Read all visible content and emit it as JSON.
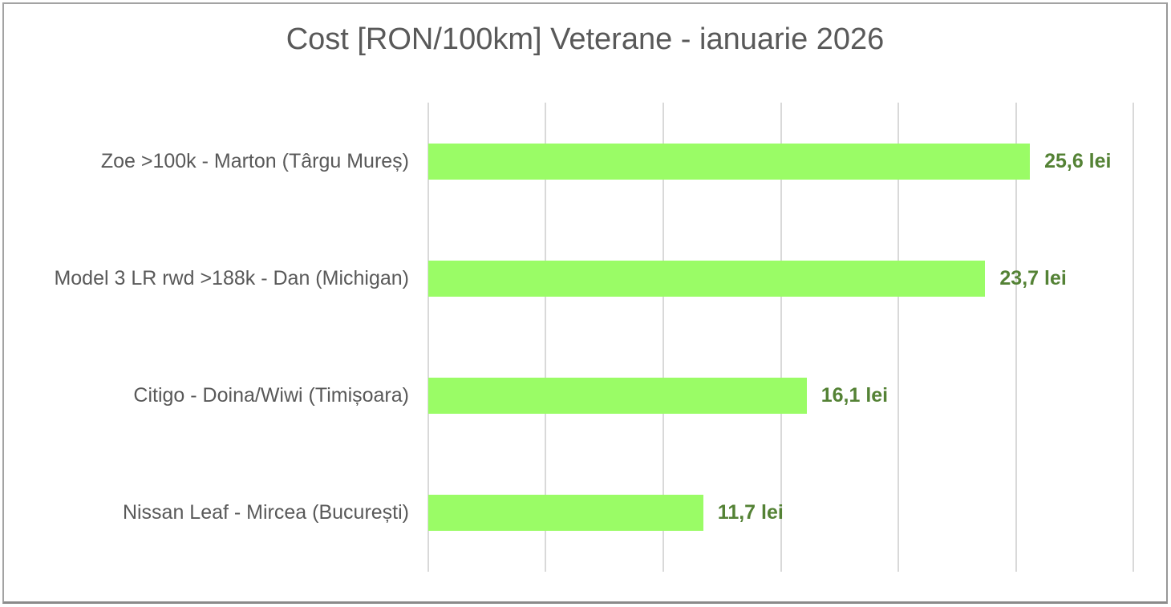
{
  "chart_data": {
    "type": "bar",
    "orientation": "horizontal",
    "title": "Cost [RON/100km] Veterane - ianuarie 2026",
    "categories": [
      "Zoe >100k - Marton (Târgu Mureș)",
      "Model 3 LR rwd >188k - Dan (Michigan)",
      "Citigo - Doina/Wiwi (Timișoara)",
      "Nissan Leaf - Mircea (București)"
    ],
    "values": [
      25.6,
      23.7,
      16.1,
      11.7
    ],
    "value_labels": [
      "25,6 lei",
      "23,7 lei",
      "16,1 lei",
      "11,7 lei"
    ],
    "unit": "lei",
    "xlabel": "",
    "ylabel": "",
    "xlim": [
      0,
      30
    ],
    "ticks": [
      0,
      5,
      10,
      15,
      20,
      25,
      30
    ],
    "tick_labels_visible": false,
    "grid": "vertical-gridlines",
    "legend": "none",
    "bar_color": "#9AFC66",
    "value_label_color": "#548235",
    "title_color": "#595959",
    "category_color": "#595959",
    "gridline_color": "#D9D9D9"
  }
}
